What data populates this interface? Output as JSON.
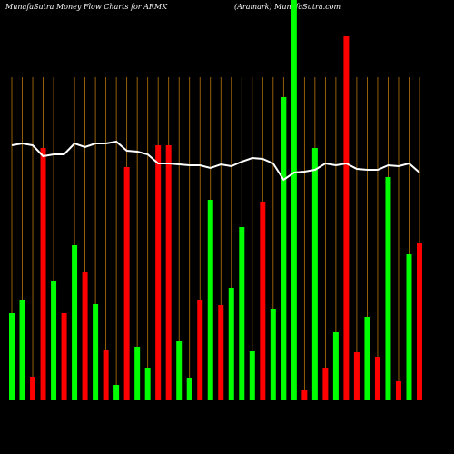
{
  "chart_data": {
    "type": "bar",
    "title": "MunafaSutra  Money Flow  Charts for ARMK",
    "subtitle": "(Aramark) MunafaSutra.com",
    "categories": [
      null,
      null,
      null,
      null,
      null,
      null,
      null,
      null,
      null,
      null,
      null,
      null,
      null,
      null,
      null,
      null,
      null,
      null,
      null,
      null,
      null,
      null,
      null,
      null,
      null,
      null,
      null,
      null,
      null,
      null,
      null,
      null,
      null,
      null,
      null,
      null,
      null,
      null,
      null,
      null
    ],
    "series": [
      {
        "type": "bar",
        "colors": [
          "#00ff00",
          "#00ff00",
          "#ff0000",
          "#ff0000",
          "#00ff00",
          "#ff0000",
          "#00ff00",
          "#ff0000",
          "#00ff00",
          "#ff0000",
          "#00ff00",
          "#ff0000",
          "#00ff00",
          "#00ff00",
          "#ff0000",
          "#ff0000",
          "#00ff00",
          "#00ff00",
          "#ff0000",
          "#00ff00",
          "#ff0000",
          "#00ff00",
          "#00ff00",
          "#00ff00",
          "#ff0000",
          "#00ff00",
          "#00ff00",
          "#00ff00",
          "#ff0000",
          "#00ff00",
          "#ff0000",
          "#00ff00",
          "#ff0000",
          "#ff0000",
          "#00ff00",
          "#ff0000",
          "#00ff00",
          "#ff0000",
          "#00ff00",
          "#ff0000"
        ],
        "values": [
          95,
          110,
          25,
          277,
          130,
          95,
          170,
          140,
          105,
          55,
          16,
          256,
          58,
          35,
          280,
          280,
          65,
          24,
          110,
          220,
          104,
          123,
          190,
          53,
          217,
          100,
          333,
          460,
          10,
          277,
          35,
          74,
          400,
          52,
          91,
          47,
          245,
          20,
          160,
          172
        ]
      },
      {
        "type": "line",
        "color": "#ffffff",
        "values": [
          280,
          282,
          280,
          268,
          270,
          270,
          282,
          278,
          282,
          282,
          284,
          274,
          273,
          270,
          260,
          260,
          259,
          258,
          258,
          255,
          259,
          257,
          262,
          266,
          265,
          260,
          242,
          250,
          251,
          253,
          260,
          258,
          260,
          254,
          253,
          253,
          258,
          257,
          260,
          250
        ]
      }
    ],
    "ylim": [
      0,
      440
    ],
    "grid": true,
    "grid_color": "#b8760b",
    "background": "#000000"
  }
}
